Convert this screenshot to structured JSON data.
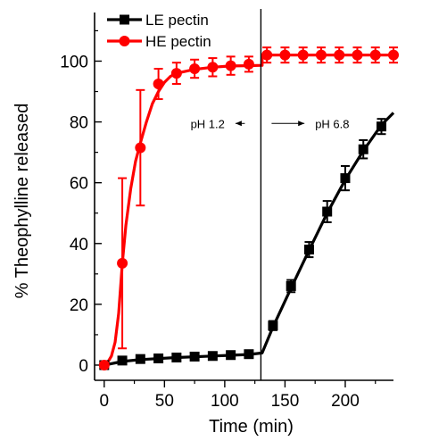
{
  "chart_data": {
    "type": "line",
    "xlabel": "Time (min)",
    "ylabel": "% Theophylline released",
    "xlim": [
      -8,
      240
    ],
    "ylim": [
      -5,
      116
    ],
    "xticks": [
      0,
      50,
      100,
      150,
      200
    ],
    "yticks": [
      0,
      20,
      40,
      60,
      80,
      100
    ],
    "grid": false,
    "legend_position": "top-left",
    "series": [
      {
        "name": "HE pectin",
        "color": "#ff0000",
        "marker": "circle",
        "x": [
          0,
          15,
          30,
          45,
          60,
          75,
          90,
          105,
          120,
          135,
          150,
          165,
          180,
          195,
          210,
          225,
          240
        ],
        "y": [
          0,
          33.5,
          71.5,
          92.5,
          96,
          97.5,
          98,
          98.5,
          99,
          102,
          102,
          102,
          102,
          102,
          102,
          102,
          102
        ],
        "yerr": [
          0,
          28,
          19,
          5,
          3.5,
          3,
          3,
          3,
          2.5,
          2.5,
          2.5,
          2.5,
          2.5,
          2.5,
          2.5,
          2.5,
          2.5
        ]
      },
      {
        "name": "LE pectin",
        "color": "#000000",
        "marker": "square",
        "x": [
          0,
          15,
          30,
          45,
          60,
          75,
          90,
          105,
          120,
          140,
          155,
          170,
          185,
          200,
          215,
          230
        ],
        "y": [
          0,
          1.5,
          2,
          2.2,
          2.5,
          2.8,
          3,
          3.3,
          3.6,
          13,
          26,
          38,
          50.5,
          61.5,
          71,
          78.5
        ],
        "yerr": [
          0.5,
          0.5,
          0.7,
          0.8,
          0.8,
          0.8,
          0.8,
          0.8,
          0.8,
          1.5,
          2,
          2.5,
          3.5,
          4,
          3,
          2.5
        ]
      }
    ],
    "fit_lines": {
      "he": [
        [
          0,
          0
        ],
        [
          3,
          1
        ],
        [
          6,
          3
        ],
        [
          9,
          7.5
        ],
        [
          12,
          17
        ],
        [
          15,
          33.5
        ],
        [
          18,
          46
        ],
        [
          22,
          58
        ],
        [
          26,
          67
        ],
        [
          30,
          73
        ],
        [
          35,
          80
        ],
        [
          40,
          86
        ],
        [
          45,
          90
        ],
        [
          50,
          93
        ],
        [
          55,
          95
        ],
        [
          60,
          96
        ],
        [
          75,
          97.3
        ],
        [
          90,
          98
        ],
        [
          105,
          98.4
        ],
        [
          118,
          98.5
        ],
        [
          131,
          98.6
        ],
        [
          131,
          102
        ],
        [
          240,
          102
        ]
      ],
      "le": [
        [
          0,
          0
        ],
        [
          15,
          1.2
        ],
        [
          30,
          1.8
        ],
        [
          60,
          2.5
        ],
        [
          90,
          3
        ],
        [
          120,
          3.5
        ],
        [
          131,
          4
        ],
        [
          140,
          12.5
        ],
        [
          155,
          25.3
        ],
        [
          170,
          37.8
        ],
        [
          185,
          50
        ],
        [
          200,
          61
        ],
        [
          215,
          70.5
        ],
        [
          230,
          79
        ],
        [
          240,
          83
        ]
      ]
    },
    "divider_x": 130,
    "annotations": [
      {
        "text": "pH 1.2",
        "x": 100,
        "y": 79.5,
        "arrow": "left"
      },
      {
        "text": "pH 6.8",
        "x": 175,
        "y": 79.5,
        "arrow": "right"
      }
    ]
  }
}
